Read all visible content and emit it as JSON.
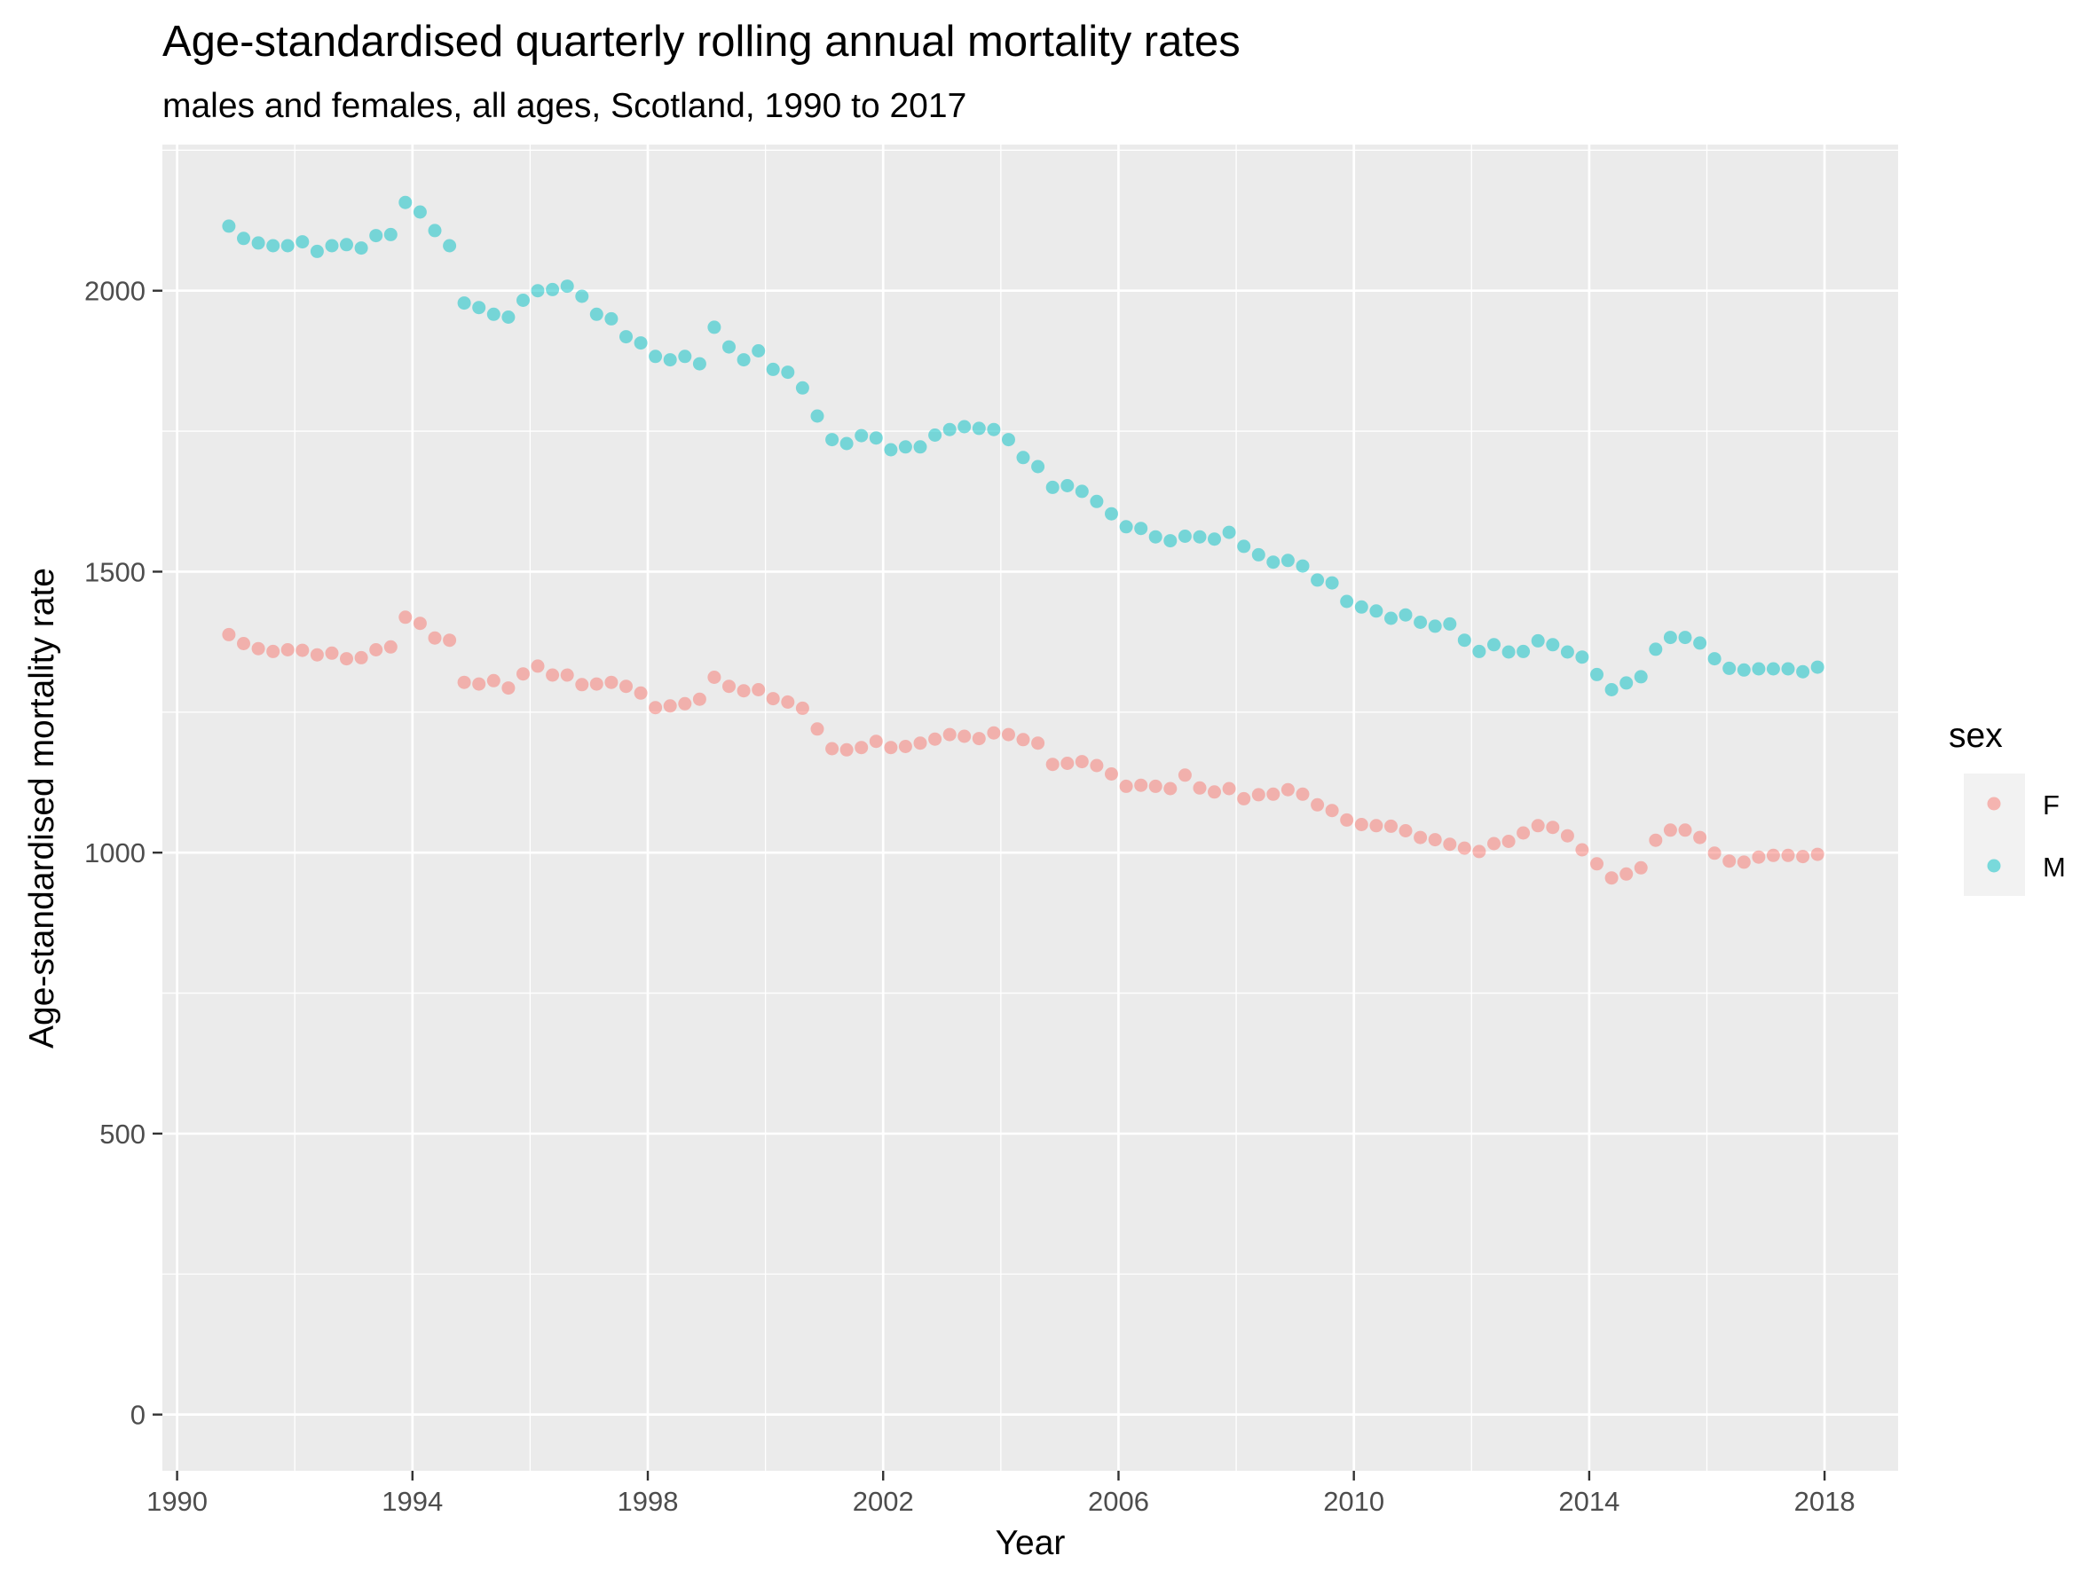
{
  "chart_data": {
    "type": "scatter",
    "title": "Age-standardised quarterly rolling annual mortality rates",
    "subtitle": "males and females, all ages, Scotland, 1990 to 2017",
    "xlabel": "Year",
    "ylabel": "Age-standardised mortality rate",
    "x_ticks": [
      1990,
      1994,
      1998,
      2002,
      2006,
      2010,
      2014,
      2018
    ],
    "y_ticks": [
      0,
      500,
      1000,
      1500,
      2000
    ],
    "xlim": [
      1989.75,
      2019.25
    ],
    "ylim": [
      -100,
      2260
    ],
    "grid": true,
    "legend": {
      "title": "sex",
      "position": "right"
    },
    "series": [
      {
        "name": "F",
        "color": "#F8766D",
        "x": [
          1990.88,
          1991.13,
          1991.38,
          1991.63,
          1991.88,
          1992.13,
          1992.38,
          1992.63,
          1992.88,
          1993.13,
          1993.38,
          1993.63,
          1993.88,
          1994.13,
          1994.38,
          1994.63,
          1994.88,
          1995.13,
          1995.38,
          1995.63,
          1995.88,
          1996.13,
          1996.38,
          1996.63,
          1996.88,
          1997.13,
          1997.38,
          1997.63,
          1997.88,
          1998.13,
          1998.38,
          1998.63,
          1998.88,
          1999.13,
          1999.38,
          1999.63,
          1999.88,
          2000.13,
          2000.38,
          2000.63,
          2000.88,
          2001.13,
          2001.38,
          2001.63,
          2001.88,
          2002.13,
          2002.38,
          2002.63,
          2002.88,
          2003.13,
          2003.38,
          2003.63,
          2003.88,
          2004.13,
          2004.38,
          2004.63,
          2004.88,
          2005.13,
          2005.38,
          2005.63,
          2005.88,
          2006.13,
          2006.38,
          2006.63,
          2006.88,
          2007.13,
          2007.38,
          2007.63,
          2007.88,
          2008.13,
          2008.38,
          2008.63,
          2008.88,
          2009.13,
          2009.38,
          2009.63,
          2009.88,
          2010.13,
          2010.38,
          2010.63,
          2010.88,
          2011.13,
          2011.38,
          2011.63,
          2011.88,
          2012.13,
          2012.38,
          2012.63,
          2012.88,
          2013.13,
          2013.38,
          2013.63,
          2013.88,
          2014.13,
          2014.38,
          2014.63,
          2014.88,
          2015.13,
          2015.38,
          2015.63,
          2015.88,
          2016.13,
          2016.38,
          2016.63,
          2016.88,
          2017.13,
          2017.38,
          2017.63,
          2017.88
        ],
        "y": [
          1388,
          1372,
          1363,
          1358,
          1361,
          1360,
          1352,
          1355,
          1345,
          1347,
          1361,
          1366,
          1419,
          1408,
          1382,
          1378,
          1303,
          1300,
          1306,
          1293,
          1318,
          1332,
          1316,
          1316,
          1299,
          1300,
          1303,
          1296,
          1284,
          1258,
          1261,
          1265,
          1273,
          1312,
          1296,
          1288,
          1290,
          1274,
          1268,
          1257,
          1220,
          1185,
          1183,
          1187,
          1198,
          1187,
          1189,
          1195,
          1202,
          1210,
          1207,
          1203,
          1213,
          1210,
          1201,
          1195,
          1157,
          1159,
          1162,
          1155,
          1140,
          1118,
          1120,
          1118,
          1114,
          1138,
          1115,
          1108,
          1114,
          1096,
          1103,
          1104,
          1112,
          1104,
          1085,
          1075,
          1058,
          1050,
          1048,
          1047,
          1039,
          1027,
          1023,
          1015,
          1008,
          1002,
          1016,
          1020,
          1035,
          1048,
          1045,
          1030,
          1005,
          980,
          955,
          962,
          973,
          1022,
          1040,
          1040,
          1027,
          999,
          985,
          983,
          992,
          995,
          995,
          993,
          997
        ]
      },
      {
        "name": "M",
        "color": "#00BFC4",
        "x": [
          1990.88,
          1991.13,
          1991.38,
          1991.63,
          1991.88,
          1992.13,
          1992.38,
          1992.63,
          1992.88,
          1993.13,
          1993.38,
          1993.63,
          1993.88,
          1994.13,
          1994.38,
          1994.63,
          1994.88,
          1995.13,
          1995.38,
          1995.63,
          1995.88,
          1996.13,
          1996.38,
          1996.63,
          1996.88,
          1997.13,
          1997.38,
          1997.63,
          1997.88,
          1998.13,
          1998.38,
          1998.63,
          1998.88,
          1999.13,
          1999.38,
          1999.63,
          1999.88,
          2000.13,
          2000.38,
          2000.63,
          2000.88,
          2001.13,
          2001.38,
          2001.63,
          2001.88,
          2002.13,
          2002.38,
          2002.63,
          2002.88,
          2003.13,
          2003.38,
          2003.63,
          2003.88,
          2004.13,
          2004.38,
          2004.63,
          2004.88,
          2005.13,
          2005.38,
          2005.63,
          2005.88,
          2006.13,
          2006.38,
          2006.63,
          2006.88,
          2007.13,
          2007.38,
          2007.63,
          2007.88,
          2008.13,
          2008.38,
          2008.63,
          2008.88,
          2009.13,
          2009.38,
          2009.63,
          2009.88,
          2010.13,
          2010.38,
          2010.63,
          2010.88,
          2011.13,
          2011.38,
          2011.63,
          2011.88,
          2012.13,
          2012.38,
          2012.63,
          2012.88,
          2013.13,
          2013.38,
          2013.63,
          2013.88,
          2014.13,
          2014.38,
          2014.63,
          2014.88,
          2015.13,
          2015.38,
          2015.63,
          2015.88,
          2016.13,
          2016.38,
          2016.63,
          2016.88,
          2017.13,
          2017.38,
          2017.63,
          2017.88
        ],
        "y": [
          2115,
          2093,
          2085,
          2080,
          2080,
          2087,
          2070,
          2080,
          2082,
          2076,
          2098,
          2100,
          2157,
          2140,
          2107,
          2080,
          1978,
          1970,
          1958,
          1953,
          1983,
          2000,
          2002,
          2008,
          1990,
          1958,
          1950,
          1918,
          1907,
          1883,
          1877,
          1883,
          1870,
          1935,
          1900,
          1877,
          1893,
          1860,
          1855,
          1827,
          1777,
          1735,
          1728,
          1742,
          1738,
          1717,
          1722,
          1722,
          1743,
          1753,
          1758,
          1755,
          1753,
          1735,
          1703,
          1687,
          1650,
          1653,
          1643,
          1625,
          1603,
          1580,
          1577,
          1562,
          1555,
          1563,
          1562,
          1558,
          1570,
          1545,
          1530,
          1517,
          1520,
          1510,
          1485,
          1480,
          1447,
          1437,
          1430,
          1417,
          1423,
          1410,
          1403,
          1407,
          1378,
          1358,
          1370,
          1357,
          1358,
          1377,
          1370,
          1357,
          1348,
          1317,
          1290,
          1302,
          1313,
          1362,
          1383,
          1383,
          1373,
          1345,
          1328,
          1325,
          1327,
          1327,
          1327,
          1322,
          1330
        ]
      }
    ]
  }
}
